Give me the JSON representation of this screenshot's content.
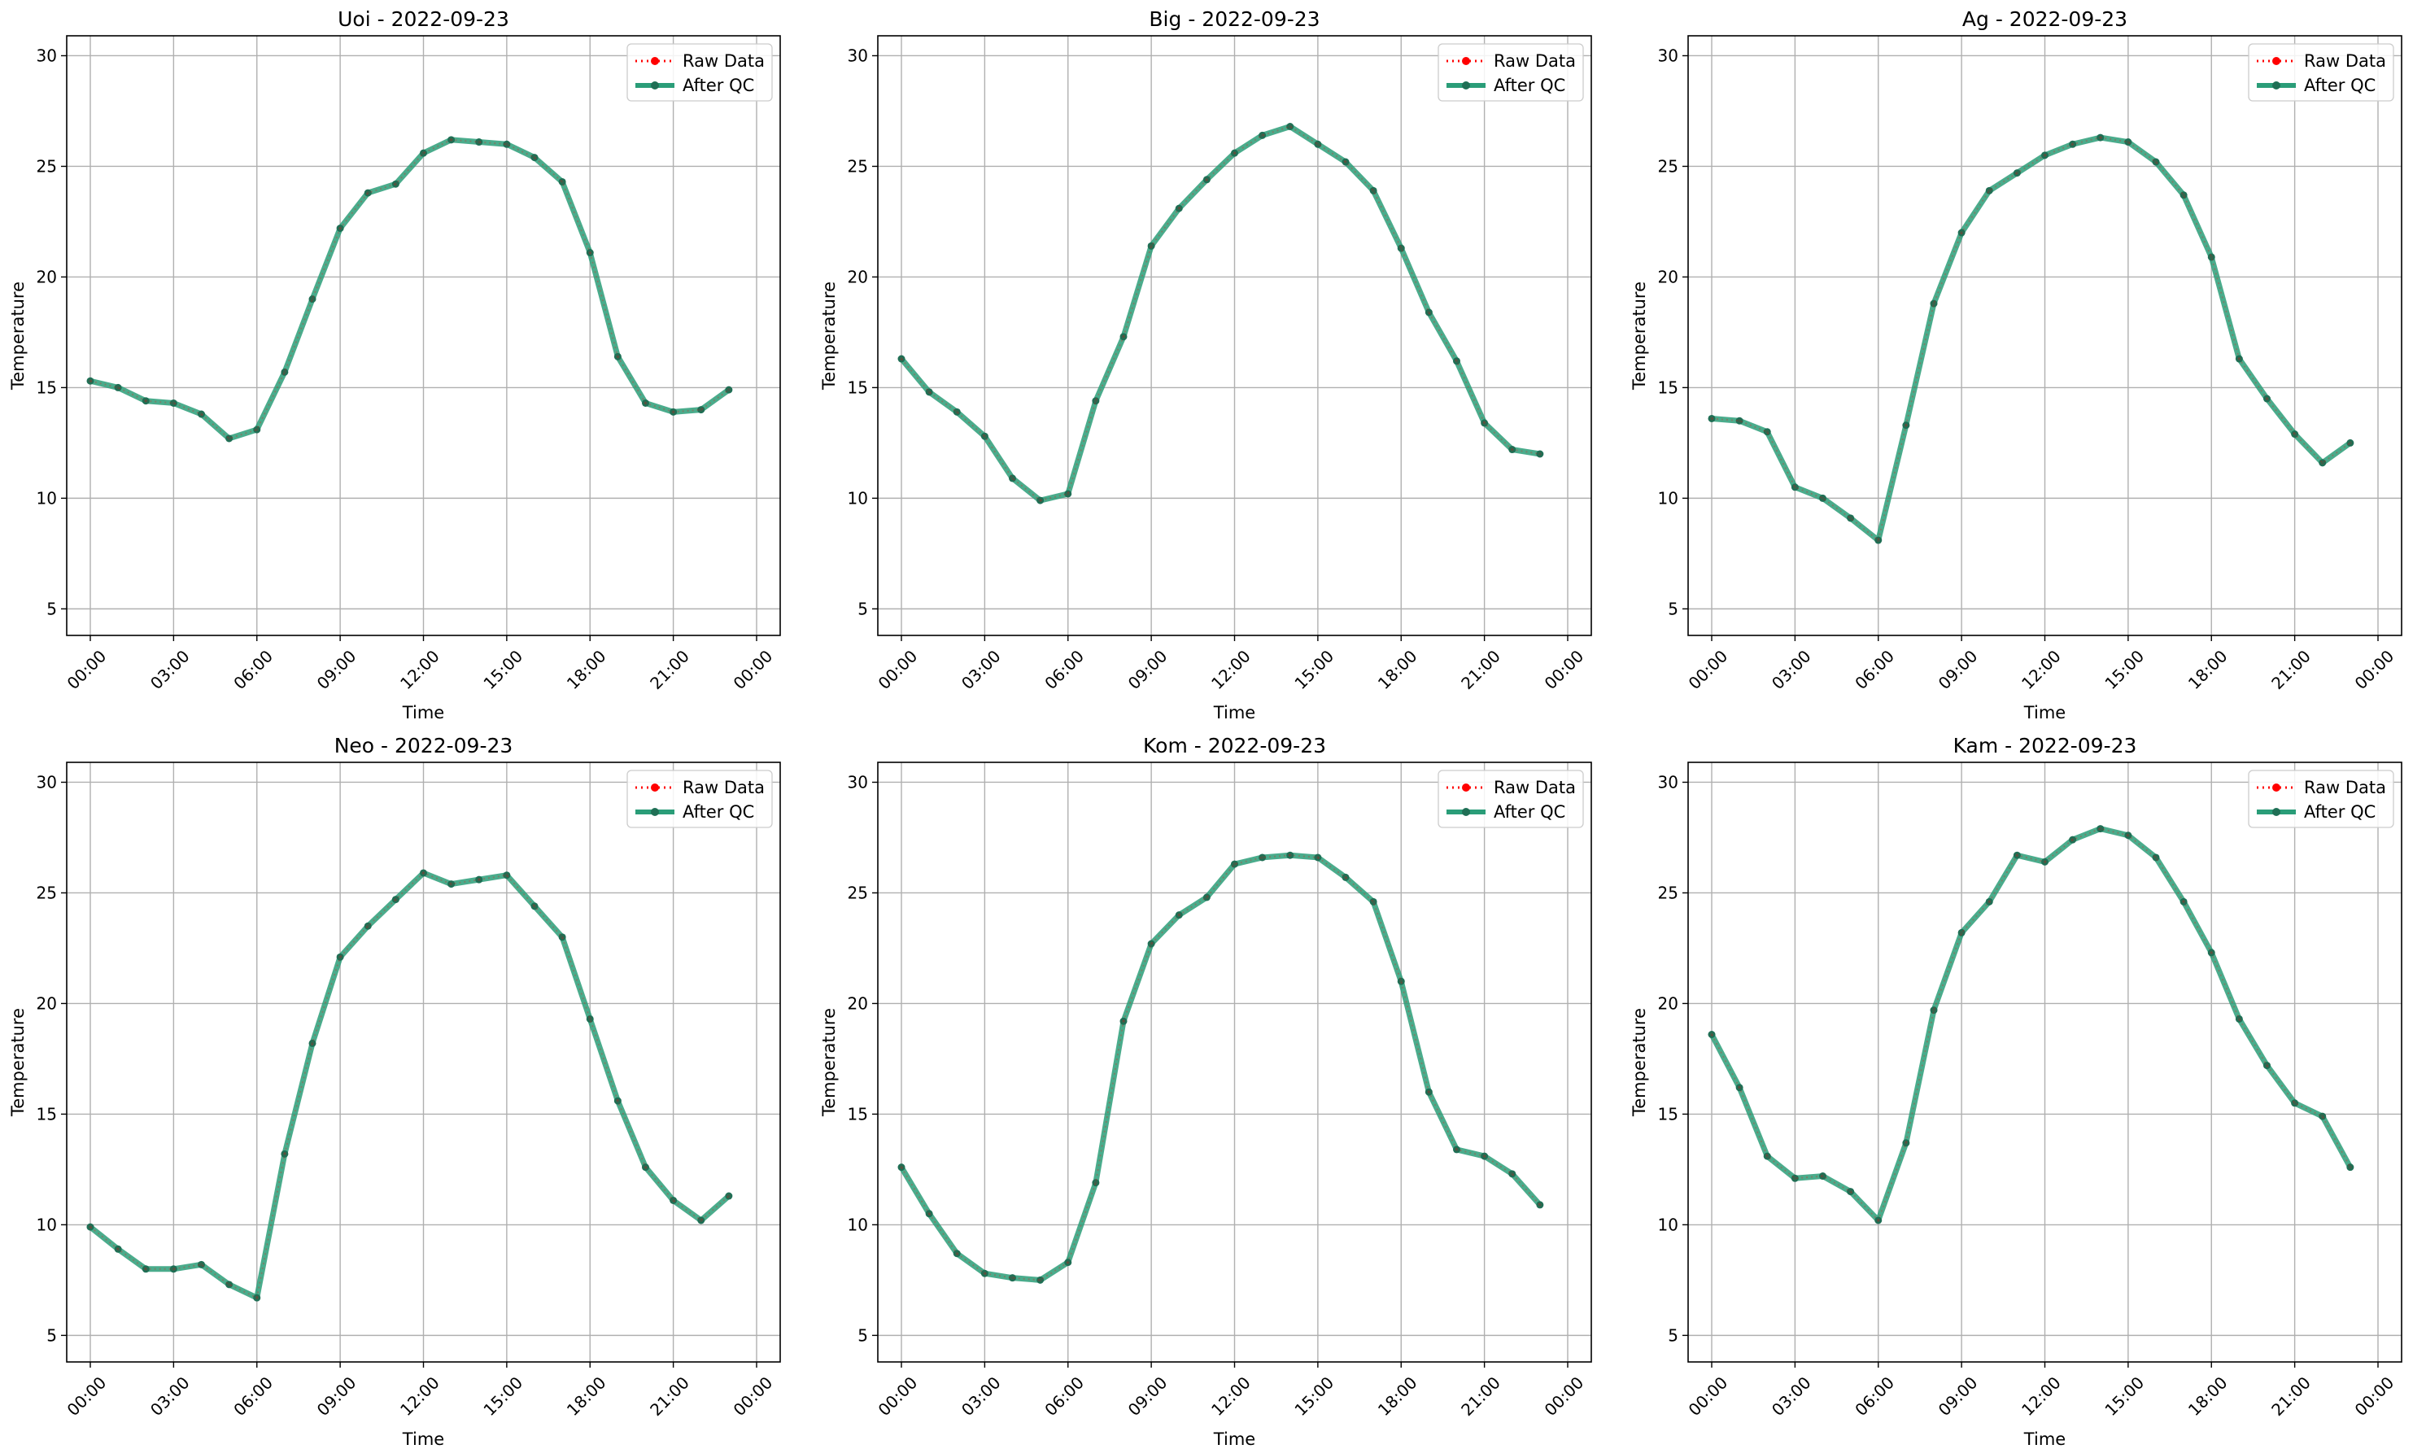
{
  "colors": {
    "raw": "#ff0000",
    "after_qc": "#2a9d78",
    "after_qc_marker": "#1f6f55",
    "grid": "#b0b0b0",
    "axes": "#000000"
  },
  "chart_data": [
    {
      "type": "line",
      "title": "Uoi - 2022-09-23",
      "xlabel": "Time",
      "ylabel": "Temperature",
      "ylim": [
        3.8,
        30.9
      ],
      "yticks": [
        5,
        10,
        15,
        20,
        25,
        30
      ],
      "xlim": [
        -0.85,
        24.85
      ],
      "xticks": [
        0,
        3,
        6,
        9,
        12,
        15,
        18,
        21,
        24
      ],
      "xtick_labels": [
        "00:00",
        "03:00",
        "06:00",
        "09:00",
        "12:00",
        "15:00",
        "18:00",
        "21:00",
        "00:00"
      ],
      "grid": true,
      "legend_position": "top-right",
      "x": [
        "00:00",
        "01:00",
        "02:00",
        "03:00",
        "04:00",
        "05:00",
        "06:00",
        "07:00",
        "08:00",
        "09:00",
        "10:00",
        "11:00",
        "12:00",
        "13:00",
        "14:00",
        "15:00",
        "16:00",
        "17:00",
        "18:00",
        "19:00",
        "20:00",
        "21:00",
        "22:00",
        "23:00"
      ],
      "series": [
        {
          "name": "Raw Data",
          "values": [
            15.3,
            15.0,
            14.4,
            14.3,
            13.8,
            12.7,
            13.1,
            15.7,
            19.0,
            22.2,
            23.8,
            24.2,
            25.6,
            26.2,
            26.1,
            26.0,
            25.4,
            24.3,
            21.1,
            16.4,
            14.3,
            13.9,
            14.0,
            14.9
          ]
        },
        {
          "name": "After QC",
          "values": [
            15.3,
            15.0,
            14.4,
            14.3,
            13.8,
            12.7,
            13.1,
            15.7,
            19.0,
            22.2,
            23.8,
            24.2,
            25.6,
            26.2,
            26.1,
            26.0,
            25.4,
            24.3,
            21.1,
            16.4,
            14.3,
            13.9,
            14.0,
            14.9
          ]
        }
      ]
    },
    {
      "type": "line",
      "title": "Big - 2022-09-23",
      "xlabel": "Time",
      "ylabel": "Temperature",
      "ylim": [
        3.8,
        30.9
      ],
      "yticks": [
        5,
        10,
        15,
        20,
        25,
        30
      ],
      "xlim": [
        -0.85,
        24.85
      ],
      "xticks": [
        0,
        3,
        6,
        9,
        12,
        15,
        18,
        21,
        24
      ],
      "xtick_labels": [
        "00:00",
        "03:00",
        "06:00",
        "09:00",
        "12:00",
        "15:00",
        "18:00",
        "21:00",
        "00:00"
      ],
      "grid": true,
      "legend_position": "top-right",
      "x": [
        "00:00",
        "01:00",
        "02:00",
        "03:00",
        "04:00",
        "05:00",
        "06:00",
        "07:00",
        "08:00",
        "09:00",
        "10:00",
        "11:00",
        "12:00",
        "13:00",
        "14:00",
        "15:00",
        "16:00",
        "17:00",
        "18:00",
        "19:00",
        "20:00",
        "21:00",
        "22:00",
        "23:00"
      ],
      "series": [
        {
          "name": "Raw Data",
          "values": [
            16.3,
            14.8,
            13.9,
            12.8,
            10.9,
            9.9,
            10.2,
            14.4,
            17.3,
            21.4,
            23.1,
            24.4,
            25.6,
            26.4,
            26.8,
            26.0,
            25.2,
            23.9,
            21.3,
            18.4,
            16.2,
            13.4,
            12.2,
            12.0
          ]
        },
        {
          "name": "After QC",
          "values": [
            16.3,
            14.8,
            13.9,
            12.8,
            10.9,
            9.9,
            10.2,
            14.4,
            17.3,
            21.4,
            23.1,
            24.4,
            25.6,
            26.4,
            26.8,
            26.0,
            25.2,
            23.9,
            21.3,
            18.4,
            16.2,
            13.4,
            12.2,
            12.0
          ]
        }
      ]
    },
    {
      "type": "line",
      "title": "Ag - 2022-09-23",
      "xlabel": "Time",
      "ylabel": "Temperature",
      "ylim": [
        3.8,
        30.9
      ],
      "yticks": [
        5,
        10,
        15,
        20,
        25,
        30
      ],
      "xlim": [
        -0.85,
        24.85
      ],
      "xticks": [
        0,
        3,
        6,
        9,
        12,
        15,
        18,
        21,
        24
      ],
      "xtick_labels": [
        "00:00",
        "03:00",
        "06:00",
        "09:00",
        "12:00",
        "15:00",
        "18:00",
        "21:00",
        "00:00"
      ],
      "grid": true,
      "legend_position": "top-right",
      "x": [
        "00:00",
        "01:00",
        "02:00",
        "03:00",
        "04:00",
        "05:00",
        "06:00",
        "07:00",
        "08:00",
        "09:00",
        "10:00",
        "11:00",
        "12:00",
        "13:00",
        "14:00",
        "15:00",
        "16:00",
        "17:00",
        "18:00",
        "19:00",
        "20:00",
        "21:00",
        "22:00",
        "23:00"
      ],
      "series": [
        {
          "name": "Raw Data",
          "values": [
            13.6,
            13.5,
            13.0,
            10.5,
            10.0,
            9.1,
            8.1,
            13.3,
            18.8,
            22.0,
            23.9,
            24.7,
            25.5,
            26.0,
            26.3,
            26.1,
            25.2,
            23.7,
            20.9,
            16.3,
            14.5,
            12.9,
            11.6,
            12.5
          ]
        },
        {
          "name": "After QC",
          "values": [
            13.6,
            13.5,
            13.0,
            10.5,
            10.0,
            9.1,
            8.1,
            13.3,
            18.8,
            22.0,
            23.9,
            24.7,
            25.5,
            26.0,
            26.3,
            26.1,
            25.2,
            23.7,
            20.9,
            16.3,
            14.5,
            12.9,
            11.6,
            12.5
          ]
        }
      ]
    },
    {
      "type": "line",
      "title": "Neo - 2022-09-23",
      "xlabel": "Time",
      "ylabel": "Temperature",
      "ylim": [
        3.8,
        30.9
      ],
      "yticks": [
        5,
        10,
        15,
        20,
        25,
        30
      ],
      "xlim": [
        -0.85,
        24.85
      ],
      "xticks": [
        0,
        3,
        6,
        9,
        12,
        15,
        18,
        21,
        24
      ],
      "xtick_labels": [
        "00:00",
        "03:00",
        "06:00",
        "09:00",
        "12:00",
        "15:00",
        "18:00",
        "21:00",
        "00:00"
      ],
      "grid": true,
      "legend_position": "top-right",
      "x": [
        "00:00",
        "01:00",
        "02:00",
        "03:00",
        "04:00",
        "05:00",
        "06:00",
        "07:00",
        "08:00",
        "09:00",
        "10:00",
        "11:00",
        "12:00",
        "13:00",
        "14:00",
        "15:00",
        "16:00",
        "17:00",
        "18:00",
        "19:00",
        "20:00",
        "21:00",
        "22:00",
        "23:00"
      ],
      "series": [
        {
          "name": "Raw Data",
          "values": [
            9.9,
            8.9,
            8.0,
            8.0,
            8.2,
            7.3,
            6.7,
            13.2,
            18.2,
            22.1,
            23.5,
            24.7,
            25.9,
            25.4,
            25.6,
            25.8,
            24.4,
            23.0,
            19.3,
            15.6,
            12.6,
            11.1,
            10.2,
            11.3
          ]
        },
        {
          "name": "After QC",
          "values": [
            9.9,
            8.9,
            8.0,
            8.0,
            8.2,
            7.3,
            6.7,
            13.2,
            18.2,
            22.1,
            23.5,
            24.7,
            25.9,
            25.4,
            25.6,
            25.8,
            24.4,
            23.0,
            19.3,
            15.6,
            12.6,
            11.1,
            10.2,
            11.3
          ]
        }
      ]
    },
    {
      "type": "line",
      "title": "Kom - 2022-09-23",
      "xlabel": "Time",
      "ylabel": "Temperature",
      "ylim": [
        3.8,
        30.9
      ],
      "yticks": [
        5,
        10,
        15,
        20,
        25,
        30
      ],
      "xlim": [
        -0.85,
        24.85
      ],
      "xticks": [
        0,
        3,
        6,
        9,
        12,
        15,
        18,
        21,
        24
      ],
      "xtick_labels": [
        "00:00",
        "03:00",
        "06:00",
        "09:00",
        "12:00",
        "15:00",
        "18:00",
        "21:00",
        "00:00"
      ],
      "grid": true,
      "legend_position": "top-right",
      "x": [
        "00:00",
        "01:00",
        "02:00",
        "03:00",
        "04:00",
        "05:00",
        "06:00",
        "07:00",
        "08:00",
        "09:00",
        "10:00",
        "11:00",
        "12:00",
        "13:00",
        "14:00",
        "15:00",
        "16:00",
        "17:00",
        "18:00",
        "19:00",
        "20:00",
        "21:00",
        "22:00",
        "23:00"
      ],
      "series": [
        {
          "name": "Raw Data",
          "values": [
            12.6,
            10.5,
            8.7,
            7.8,
            7.6,
            7.5,
            8.3,
            11.9,
            19.2,
            22.7,
            24.0,
            24.8,
            26.3,
            26.6,
            26.7,
            26.6,
            25.7,
            24.6,
            21.0,
            16.0,
            13.4,
            13.1,
            12.3,
            10.9
          ]
        },
        {
          "name": "After QC",
          "values": [
            12.6,
            10.5,
            8.7,
            7.8,
            7.6,
            7.5,
            8.3,
            11.9,
            19.2,
            22.7,
            24.0,
            24.8,
            26.3,
            26.6,
            26.7,
            26.6,
            25.7,
            24.6,
            21.0,
            16.0,
            13.4,
            13.1,
            12.3,
            10.9
          ]
        }
      ]
    },
    {
      "type": "line",
      "title": "Kam - 2022-09-23",
      "xlabel": "Time",
      "ylabel": "Temperature",
      "ylim": [
        3.8,
        30.9
      ],
      "yticks": [
        5,
        10,
        15,
        20,
        25,
        30
      ],
      "xlim": [
        -0.85,
        24.85
      ],
      "xticks": [
        0,
        3,
        6,
        9,
        12,
        15,
        18,
        21,
        24
      ],
      "xtick_labels": [
        "00:00",
        "03:00",
        "06:00",
        "09:00",
        "12:00",
        "15:00",
        "18:00",
        "21:00",
        "00:00"
      ],
      "grid": true,
      "legend_position": "top-right",
      "x": [
        "00:00",
        "01:00",
        "02:00",
        "03:00",
        "04:00",
        "05:00",
        "06:00",
        "07:00",
        "08:00",
        "09:00",
        "10:00",
        "11:00",
        "12:00",
        "13:00",
        "14:00",
        "15:00",
        "16:00",
        "17:00",
        "18:00",
        "19:00",
        "20:00",
        "21:00",
        "22:00",
        "23:00"
      ],
      "series": [
        {
          "name": "Raw Data",
          "values": [
            18.6,
            16.2,
            13.1,
            12.1,
            12.2,
            11.5,
            10.2,
            13.7,
            19.7,
            23.2,
            24.6,
            26.7,
            26.4,
            27.4,
            27.9,
            27.6,
            26.6,
            24.6,
            22.3,
            19.3,
            17.2,
            15.5,
            14.9,
            12.6
          ]
        },
        {
          "name": "After QC",
          "values": [
            18.6,
            16.2,
            13.1,
            12.1,
            12.2,
            11.5,
            10.2,
            13.7,
            19.7,
            23.2,
            24.6,
            26.7,
            26.4,
            27.4,
            27.9,
            27.6,
            26.6,
            24.6,
            22.3,
            19.3,
            17.2,
            15.5,
            14.9,
            12.6
          ]
        }
      ]
    }
  ]
}
